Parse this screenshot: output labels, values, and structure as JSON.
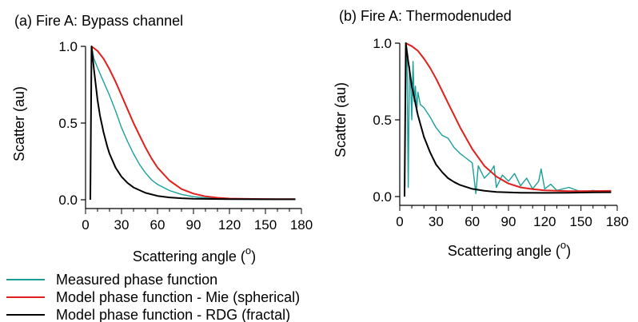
{
  "colors": {
    "measured": "#1a9e9a",
    "mie": "#e0201c",
    "rdg": "#000000"
  },
  "legend": [
    {
      "label": "Measured phase function",
      "color": "#1a9e9a"
    },
    {
      "label": "Model phase function - Mie (spherical)",
      "color": "#e0201c"
    },
    {
      "label": "Model phase function - RDG (fractal)",
      "color": "#000000"
    }
  ],
  "chart_data": [
    {
      "type": "line",
      "title": "(a) Fire A: Bypass channel",
      "xlabel": "Scattering angle (",
      "xlabel_sup": "o",
      "xlabel_end": ")",
      "ylabel": "Scatter (au)",
      "xlim": [
        0,
        180
      ],
      "ylim": [
        0,
        1
      ],
      "xticks": [
        "0",
        "30",
        "60",
        "90",
        "120",
        "150",
        "180"
      ],
      "yticks": [
        "0.0",
        "0.5",
        "1.0"
      ],
      "series": [
        {
          "name": "Measured phase function",
          "x": [
            5,
            7,
            10,
            15,
            20,
            25,
            30,
            35,
            40,
            45,
            50,
            55,
            60,
            70,
            80,
            90,
            100,
            120,
            140,
            160,
            175
          ],
          "y": [
            1.0,
            0.92,
            0.86,
            0.77,
            0.68,
            0.58,
            0.47,
            0.38,
            0.3,
            0.23,
            0.175,
            0.13,
            0.1,
            0.06,
            0.035,
            0.02,
            0.012,
            0.006,
            0.004,
            0.003,
            0.003
          ]
        },
        {
          "name": "Model phase function - Mie (spherical)",
          "x": [
            5,
            10,
            15,
            20,
            25,
            30,
            35,
            40,
            45,
            50,
            55,
            60,
            70,
            80,
            90,
            100,
            110,
            120,
            140,
            160,
            175
          ],
          "y": [
            1.0,
            0.97,
            0.92,
            0.85,
            0.77,
            0.68,
            0.59,
            0.5,
            0.42,
            0.34,
            0.27,
            0.21,
            0.125,
            0.07,
            0.04,
            0.022,
            0.013,
            0.008,
            0.005,
            0.004,
            0.004
          ]
        },
        {
          "name": "Model phase function - RDG (fractal)",
          "x": [
            4,
            5,
            7,
            10,
            12,
            15,
            18,
            20,
            25,
            30,
            35,
            40,
            50,
            60,
            70,
            80,
            90,
            120,
            150,
            175
          ],
          "y": [
            0.0,
            1.0,
            0.85,
            0.65,
            0.55,
            0.44,
            0.35,
            0.3,
            0.21,
            0.15,
            0.11,
            0.08,
            0.045,
            0.025,
            0.015,
            0.01,
            0.007,
            0.004,
            0.003,
            0.003
          ]
        }
      ]
    },
    {
      "type": "line",
      "title": "(b) Fire A: Thermodenuded",
      "xlabel": "Scattering angle (",
      "xlabel_sup": "o",
      "xlabel_end": ")",
      "ylabel": "Scatter (au)",
      "xlim": [
        0,
        180
      ],
      "ylim": [
        0,
        1
      ],
      "xticks": [
        "0",
        "30",
        "60",
        "90",
        "120",
        "150",
        "180"
      ],
      "yticks": [
        "0.0",
        "0.5",
        "1.0"
      ],
      "series": [
        {
          "name": "Measured phase function",
          "x": [
            5,
            6,
            7,
            8,
            9,
            10,
            11,
            12,
            13,
            14,
            15,
            17,
            20,
            25,
            30,
            35,
            40,
            45,
            50,
            55,
            60,
            63,
            65,
            70,
            75,
            78,
            80,
            85,
            90,
            95,
            100,
            105,
            110,
            115,
            117,
            120,
            125,
            130,
            140,
            150,
            160,
            170,
            175
          ],
          "y": [
            1.0,
            0.9,
            0.06,
            0.85,
            0.75,
            0.5,
            0.88,
            0.62,
            0.72,
            0.55,
            0.68,
            0.6,
            0.58,
            0.52,
            0.45,
            0.4,
            0.38,
            0.32,
            0.28,
            0.25,
            0.22,
            0.02,
            0.2,
            0.12,
            0.16,
            0.2,
            0.06,
            0.14,
            0.1,
            0.15,
            0.07,
            0.12,
            0.05,
            0.1,
            0.18,
            0.05,
            0.08,
            0.04,
            0.06,
            0.03,
            0.04,
            0.03,
            0.03
          ]
        },
        {
          "name": "Model phase function - Mie (spherical)",
          "x": [
            5,
            10,
            15,
            20,
            25,
            30,
            35,
            40,
            45,
            50,
            55,
            60,
            70,
            80,
            90,
            100,
            110,
            120,
            140,
            160,
            175
          ],
          "y": [
            1.0,
            0.98,
            0.95,
            0.9,
            0.84,
            0.77,
            0.69,
            0.61,
            0.53,
            0.45,
            0.38,
            0.31,
            0.2,
            0.13,
            0.085,
            0.06,
            0.048,
            0.04,
            0.035,
            0.036,
            0.037
          ]
        },
        {
          "name": "Model phase function - RDG (fractal)",
          "x": [
            4,
            5,
            7,
            10,
            15,
            20,
            25,
            30,
            35,
            40,
            45,
            50,
            60,
            70,
            80,
            90,
            100,
            120,
            140,
            160,
            175
          ],
          "y": [
            0.0,
            1.0,
            0.88,
            0.72,
            0.53,
            0.39,
            0.29,
            0.21,
            0.16,
            0.12,
            0.095,
            0.075,
            0.05,
            0.038,
            0.03,
            0.027,
            0.025,
            0.024,
            0.025,
            0.027,
            0.028
          ]
        }
      ]
    }
  ]
}
